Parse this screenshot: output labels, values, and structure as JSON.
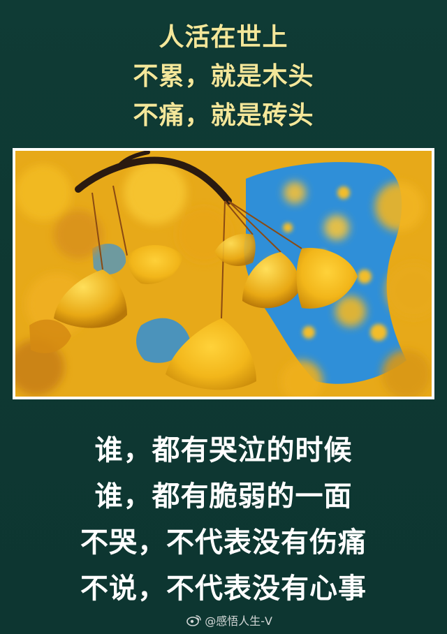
{
  "top_text": {
    "lines": [
      "人活在世上",
      "不累，就是木头",
      "不痛，就是砖头"
    ]
  },
  "photo": {
    "subject": "ginkgo-leaves-against-blue-sky"
  },
  "bottom_text": {
    "lines": [
      "谁，都有哭泣的时候",
      "谁，都有脆弱的一面",
      "不哭，不代表没有伤痛",
      "不说，不代表没有心事"
    ]
  },
  "watermark": {
    "text": "@感悟人生-V",
    "icon": "weibo-icon"
  },
  "colors": {
    "background": "#0f3a34",
    "top_text": "#f4e79a",
    "bottom_text": "#ffffff",
    "leaf": "#f2b61a",
    "sky": "#2f8fd8"
  }
}
